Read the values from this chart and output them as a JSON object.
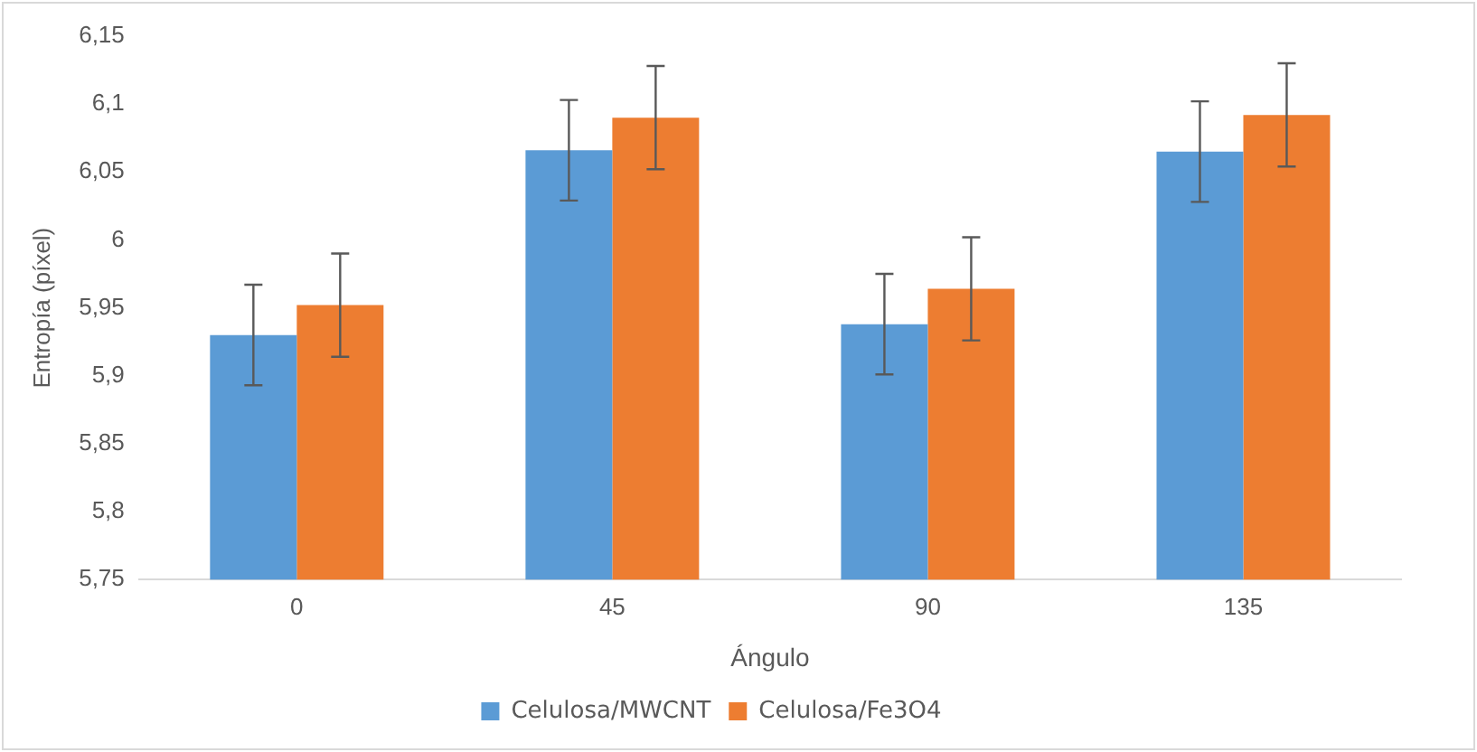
{
  "chart_data": {
    "type": "bar",
    "xlabel": "Ángulo",
    "ylabel": "Entropía (píxel)",
    "categories": [
      "0",
      "45",
      "90",
      "135"
    ],
    "series": [
      {
        "name": "Celulosa/MWCNT",
        "color": "#5b9bd5",
        "values": [
          5.93,
          6.066,
          5.938,
          6.065
        ],
        "errors": [
          0.037,
          0.037,
          0.037,
          0.037
        ]
      },
      {
        "name": "Celulosa/Fe3O4",
        "color": "#ed7d31",
        "values": [
          5.952,
          6.09,
          5.964,
          6.092
        ],
        "errors": [
          0.038,
          0.038,
          0.038,
          0.038
        ]
      }
    ],
    "ylim": [
      5.75,
      6.15
    ],
    "yticks": [
      {
        "value": 5.75,
        "label": "5,75"
      },
      {
        "value": 5.8,
        "label": "5,8"
      },
      {
        "value": 5.85,
        "label": "5,85"
      },
      {
        "value": 5.9,
        "label": "5,9"
      },
      {
        "value": 5.95,
        "label": "5,95"
      },
      {
        "value": 6,
        "label": "6"
      },
      {
        "value": 6.05,
        "label": "6,05"
      },
      {
        "value": 6.1,
        "label": "6,1"
      },
      {
        "value": 6.15,
        "label": "6,15"
      }
    ],
    "grid": false,
    "legend": "bottom"
  }
}
